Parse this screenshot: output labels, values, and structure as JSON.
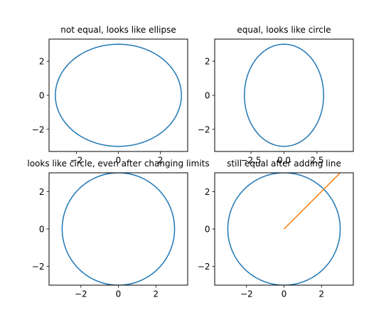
{
  "chart_data": [
    {
      "type": "line",
      "title": "not equal, looks like ellipse",
      "xlim": [
        -3.3,
        3.3
      ],
      "ylim": [
        -3.3,
        3.3
      ],
      "xticks": [
        -2,
        0,
        2
      ],
      "xtick_labels": [
        "−2",
        "0",
        "2"
      ],
      "yticks": [
        -2,
        0,
        2
      ],
      "ytick_labels": [
        "−2",
        "0",
        "2"
      ],
      "series": [
        {
          "kind": "circle",
          "center": [
            0,
            0
          ],
          "radius": 3,
          "color": "#1f77b4"
        }
      ]
    },
    {
      "type": "line",
      "title": "equal, looks like circle",
      "xlim": [
        -5.25,
        5.25
      ],
      "ylim": [
        -3.3,
        3.3
      ],
      "xticks": [
        -2.5,
        0,
        2.5
      ],
      "xtick_labels": [
        "−2.5",
        "0.0",
        "2.5"
      ],
      "yticks": [
        -2,
        0,
        2
      ],
      "ytick_labels": [
        "−2",
        "0",
        "2"
      ],
      "series": [
        {
          "kind": "circle",
          "center": [
            0,
            0
          ],
          "radius": 3,
          "color": "#1f77b4"
        }
      ]
    },
    {
      "type": "line",
      "title": "looks like circle, even after changing limits",
      "xlim": [
        -3.7,
        3.7
      ],
      "ylim": [
        -3,
        3
      ],
      "xticks": [
        -2,
        0,
        2
      ],
      "xtick_labels": [
        "−2",
        "0",
        "2"
      ],
      "yticks": [
        -2,
        0,
        2
      ],
      "ytick_labels": [
        "−2",
        "0",
        "2"
      ],
      "series": [
        {
          "kind": "circle",
          "center": [
            0,
            0
          ],
          "radius": 3,
          "color": "#1f77b4"
        }
      ]
    },
    {
      "type": "line",
      "title": "still equal after adding line",
      "xlim": [
        -3.7,
        3.7
      ],
      "ylim": [
        -3,
        3
      ],
      "xticks": [
        -2,
        0,
        2
      ],
      "xtick_labels": [
        "−2",
        "0",
        "2"
      ],
      "yticks": [
        -2,
        0,
        2
      ],
      "ytick_labels": [
        "−2",
        "0",
        "2"
      ],
      "series": [
        {
          "kind": "circle",
          "center": [
            0,
            0
          ],
          "radius": 3,
          "color": "#1f77b4"
        },
        {
          "kind": "line",
          "x": [
            0,
            4
          ],
          "y": [
            0,
            4
          ],
          "color": "#ff7f0e"
        }
      ]
    }
  ]
}
